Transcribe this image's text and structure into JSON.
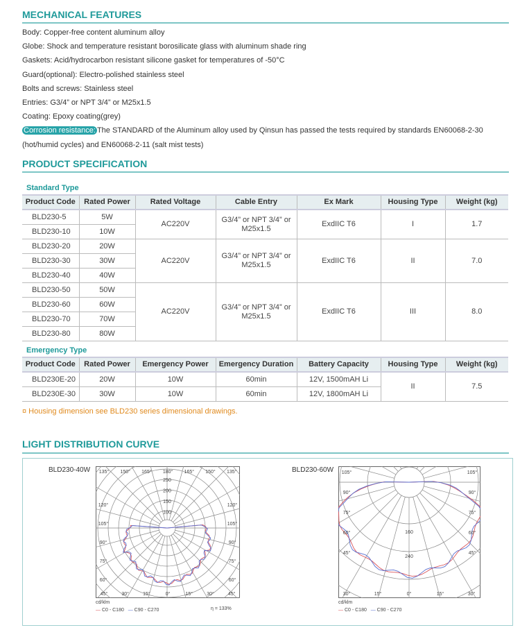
{
  "mechanical": {
    "title": "MECHANICAL FEATURES",
    "lines": [
      "Body: Copper-free content aluminum alloy",
      "Globe: Shock and temperature resistant borosilicate glass with aluminum shade ring",
      "Gaskets: Acid/hydrocarbon resistant silicone gasket for temperatures of -50°C",
      "Guard(optional): Electro-polished stainless steel",
      "Bolts and screws: Stainless steel",
      "Entries: G3/4” or NPT 3/4” or M25x1.5",
      "Coating: Epoxy coating(grey)"
    ],
    "corrosion_label": "Corrosion resistance:",
    "corrosion_text": "The STANDARD of the Aluminum alloy used by Qinsun has passed the tests required by standards EN60068-2-30",
    "corrosion_text2": "(hot/humid cycles) and EN60068-2-11 (salt mist tests)"
  },
  "spec": {
    "title": "PRODUCT SPECIFICATION",
    "standard": {
      "label": "Standard Type",
      "headers": [
        "Product Code",
        "Rated Power",
        "Rated Voltage",
        "Cable Entry",
        "Ex Mark",
        "Housing Type",
        "Weight (kg)"
      ],
      "groups": [
        {
          "rows": [
            [
              "BLD230-5",
              "5W"
            ],
            [
              "BLD230-10",
              "10W"
            ]
          ],
          "voltage": "AC220V",
          "cable": "G3/4” or NPT 3/4” or M25x1.5",
          "ex": "ExdIIC T6",
          "housing": "I",
          "weight": "1.7"
        },
        {
          "rows": [
            [
              "BLD230-20",
              "20W"
            ],
            [
              "BLD230-30",
              "30W"
            ],
            [
              "BLD230-40",
              "40W"
            ]
          ],
          "voltage": "AC220V",
          "cable": "G3/4” or NPT 3/4” or M25x1.5",
          "ex": "ExdIIC T6",
          "housing": "II",
          "weight": "7.0"
        },
        {
          "rows": [
            [
              "BLD230-50",
              "50W"
            ],
            [
              "BLD230-60",
              "60W"
            ],
            [
              "BLD230-70",
              "70W"
            ],
            [
              "BLD230-80",
              "80W"
            ]
          ],
          "voltage": "AC220V",
          "cable": "G3/4” or NPT 3/4” or M25x1.5",
          "ex": "ExdIIC T6",
          "housing": "III",
          "weight": "8.0"
        }
      ]
    },
    "emergency": {
      "label": "Emergency Type",
      "headers": [
        "Product Code",
        "Rated Power",
        "Emergency Power",
        "Emergency Duration",
        "Battery Capacity",
        "Housing Type",
        "Weight (kg)"
      ],
      "rows": [
        [
          "BLD230E-20",
          "20W",
          "10W",
          "60min",
          "12V, 1500mAH Li"
        ],
        [
          "BLD230E-30",
          "30W",
          "10W",
          "60min",
          "12V, 1800mAH Li"
        ]
      ],
      "housing": "II",
      "weight": "7.5"
    },
    "note": "¤ Housing dimension see BLD230 series dimensional drawings."
  },
  "light": {
    "title": "LIGHT DISTRIBUTION CURVE",
    "charts": [
      {
        "name": "BLD230-40W",
        "angle_labels_top": [
          "135°",
          "150°",
          "165°",
          "180°",
          "165°",
          "150°",
          "135°"
        ],
        "side_labels": [
          "120°",
          "105°",
          "90°",
          "75°",
          "60°"
        ],
        "bottom_labels": [
          "45°",
          "30°",
          "15°",
          "0°",
          "15°",
          "30°",
          "45°"
        ],
        "radial_labels": [
          "250",
          "200",
          "150",
          "100"
        ],
        "unit": "cd/klm",
        "legend": [
          "C0 - C180",
          "C90 - C270"
        ],
        "efficiency": "η = 133%"
      },
      {
        "name": "BLD230-60W",
        "side_labels": [
          "105°",
          "90°",
          "75°",
          "60°",
          "45°"
        ],
        "bottom_labels": [
          "30°",
          "15°",
          "0°",
          "15°",
          "30°"
        ],
        "radial_labels": [
          "160",
          "240"
        ],
        "unit": "cd/klm",
        "legend": [
          "C0 - C180",
          "C90 - C270"
        ]
      }
    ],
    "colors": {
      "c0": "#d9545a",
      "c90": "#5a6fd0"
    }
  }
}
